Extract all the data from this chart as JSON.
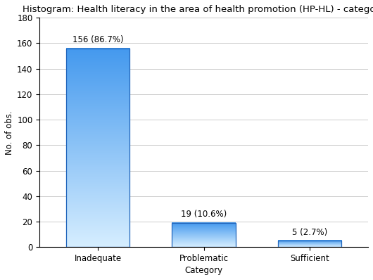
{
  "title": "Histogram: Health literacy in the area of health promotion (HP-HL) - category",
  "categories": [
    "Inadequate",
    "Problematic",
    "Sufficient"
  ],
  "values": [
    156,
    19,
    5
  ],
  "labels": [
    "156 (86.7%)",
    "19 (10.6%)",
    "5 (2.7%)"
  ],
  "xlabel": "Category",
  "ylabel": "No. of obs.",
  "ylim": [
    0,
    180
  ],
  "yticks": [
    0,
    20,
    40,
    60,
    80,
    100,
    120,
    140,
    160,
    180
  ],
  "bar_color_top": "#4499EE",
  "bar_color_bottom": "#D6EEFF",
  "bar_edge_color": "#2266BB",
  "background_color": "#FFFFFF",
  "grid_color": "#CCCCCC",
  "title_fontsize": 9.5,
  "label_fontsize": 8.5,
  "tick_fontsize": 8.5,
  "bar_width": 0.6,
  "figsize": [
    5.3,
    3.98
  ],
  "dpi": 100
}
